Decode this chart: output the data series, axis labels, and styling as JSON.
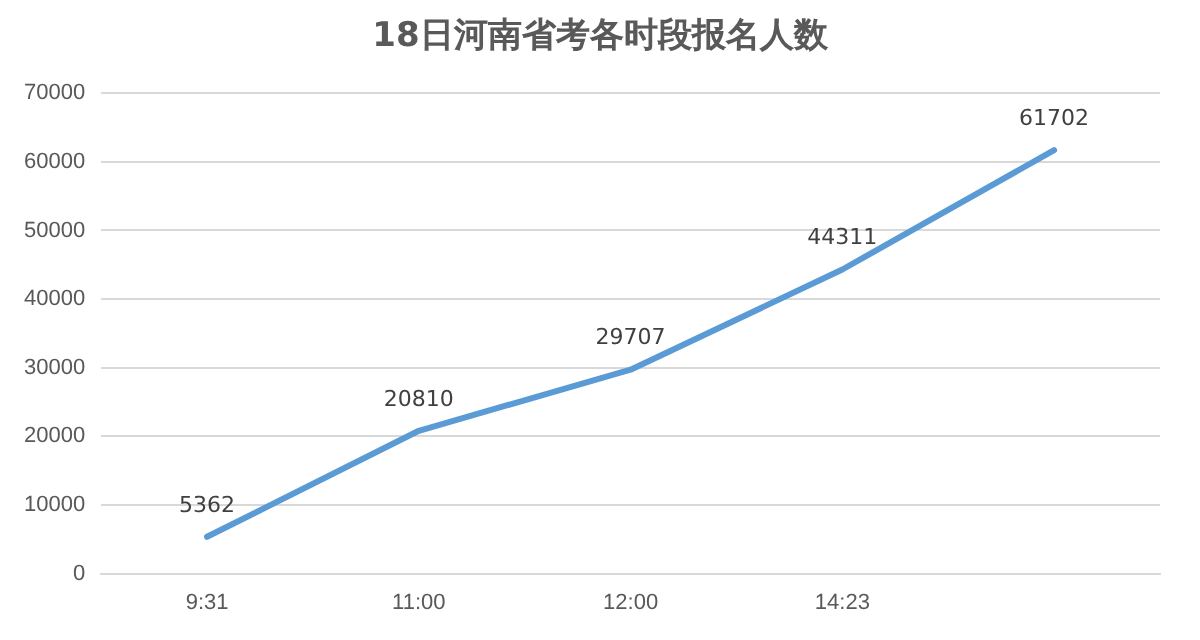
{
  "chart_data": {
    "type": "line",
    "title": "18日河南省考各时段报名人数",
    "categories": [
      "9:31",
      "11:00",
      "12:00",
      "14:23",
      null
    ],
    "values": [
      5362,
      20810,
      29707,
      44311,
      61702
    ],
    "color": "#5b9bd5",
    "ylim": [
      0,
      70000
    ],
    "yticks": [
      0,
      10000,
      20000,
      30000,
      40000,
      50000,
      60000,
      70000
    ],
    "grid": "y",
    "data_labels": true,
    "marker": "none",
    "legend": false
  }
}
